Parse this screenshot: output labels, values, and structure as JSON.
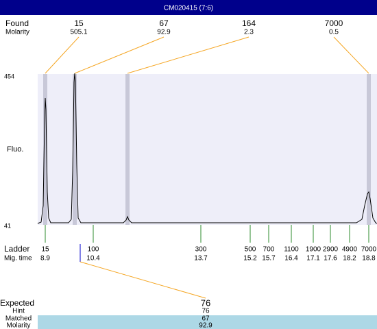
{
  "header": {
    "title": "CM020415 (7:6)"
  },
  "found": {
    "label": "Found",
    "molarity_label": "Molarity",
    "peaks": [
      {
        "size": "15",
        "molarity": "505.1"
      },
      {
        "size": "67",
        "molarity": "92.9"
      },
      {
        "size": "164",
        "molarity": "2.3"
      },
      {
        "size": "7000",
        "molarity": "0.5"
      }
    ]
  },
  "y_axis": {
    "label": "Fluo.",
    "top": "454",
    "bottom": "41"
  },
  "ladder": {
    "label": "Ladder",
    "mig_time_label": "Mig. time",
    "items": [
      {
        "size": "15",
        "time": "8.9"
      },
      {
        "size": "100",
        "time": "10.4"
      },
      {
        "size": "300",
        "time": "13.7"
      },
      {
        "size": "500",
        "time": "15.2"
      },
      {
        "size": "700",
        "time": "15.7"
      },
      {
        "size": "1100",
        "time": "16.4"
      },
      {
        "size": "1900",
        "time": "17.1"
      },
      {
        "size": "2900",
        "time": "17.6"
      },
      {
        "size": "4900",
        "time": "18.2"
      },
      {
        "size": "7000",
        "time": "18.8"
      }
    ]
  },
  "expected": {
    "label": "Expected",
    "value": "76",
    "hint_label": "Hint",
    "hint": "76",
    "matched_label": "Matched",
    "matched": "67",
    "molarity_label": "Molarity",
    "molarity": "92.9"
  }
}
